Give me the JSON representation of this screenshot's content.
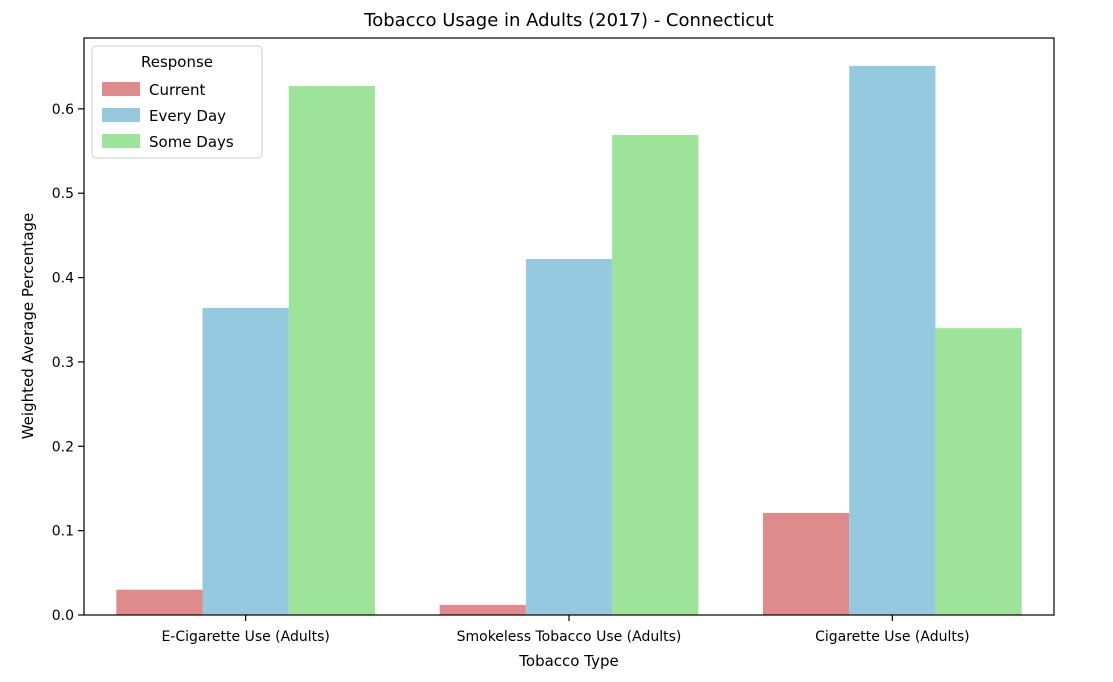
{
  "chart_data": {
    "type": "bar",
    "title": "Tobacco Usage in Adults (2017) - Connecticut",
    "xlabel": "Tobacco Type",
    "ylabel": "Weighted Average Percentage",
    "categories": [
      "E-Cigarette Use (Adults)",
      "Smokeless Tobacco Use (Adults)",
      "Cigarette Use (Adults)"
    ],
    "series": [
      {
        "name": "Current",
        "color": "#e08b8b",
        "values": [
          0.03,
          0.012,
          0.121
        ]
      },
      {
        "name": "Every Day",
        "color": "#94c9df",
        "values": [
          0.364,
          0.422,
          0.651
        ]
      },
      {
        "name": "Some Days",
        "color": "#9de39a",
        "values": [
          0.627,
          0.569,
          0.34
        ]
      }
    ],
    "ylim": [
      0,
      0.684
    ],
    "yticks": [
      0.0,
      0.1,
      0.2,
      0.3,
      0.4,
      0.5,
      0.6
    ],
    "ytick_labels": [
      "0.0",
      "0.1",
      "0.2",
      "0.3",
      "0.4",
      "0.5",
      "0.6"
    ],
    "legend": {
      "title": "Response",
      "placement": "top-left"
    },
    "grid": false
  }
}
